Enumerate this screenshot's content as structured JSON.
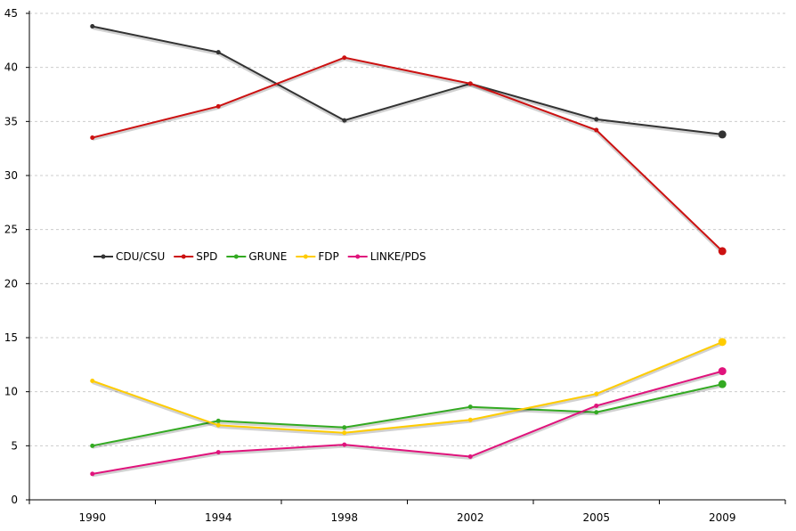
{
  "chart_data": {
    "type": "line",
    "title": "",
    "xlabel": "",
    "ylabel": "",
    "categories": [
      "1990",
      "1994",
      "1998",
      "2002",
      "2005",
      "2009"
    ],
    "ylim": [
      0,
      45
    ],
    "yticks": [
      "0",
      "5",
      "10",
      "15",
      "20",
      "25",
      "30",
      "35",
      "40",
      "45"
    ],
    "grid": "horizontal-dashed",
    "legend_position": "middle-left",
    "series": [
      {
        "name": "CDU/CSU",
        "color": "#333333",
        "values": [
          43.8,
          41.4,
          35.1,
          38.5,
          35.2,
          33.8
        ]
      },
      {
        "name": "SPD",
        "color": "#cc1111",
        "values": [
          33.5,
          36.4,
          40.9,
          38.5,
          34.2,
          23.0
        ]
      },
      {
        "name": "GRUNE",
        "color": "#33aa22",
        "values": [
          5.0,
          7.3,
          6.7,
          8.6,
          8.1,
          10.7
        ]
      },
      {
        "name": "FDP",
        "color": "#ffcc00",
        "values": [
          11.0,
          6.9,
          6.2,
          7.4,
          9.8,
          14.6
        ]
      },
      {
        "name": "LINKE/PDS",
        "color": "#e0137c",
        "values": [
          2.4,
          4.4,
          5.1,
          4.0,
          8.7,
          11.9
        ]
      }
    ]
  }
}
